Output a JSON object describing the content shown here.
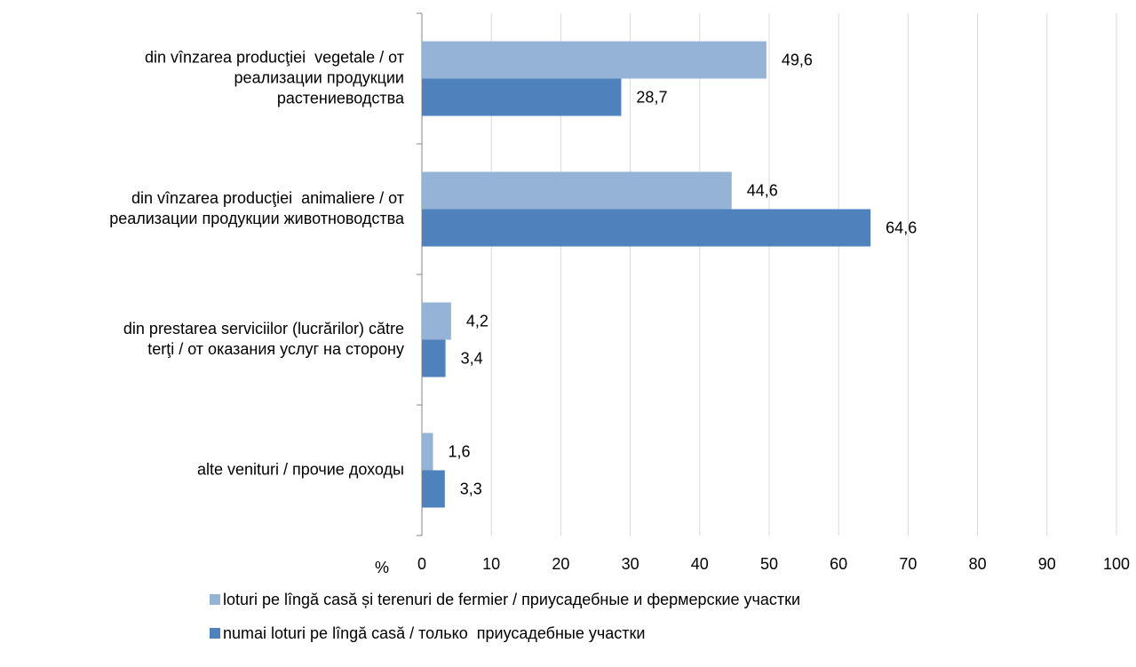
{
  "chart_data": {
    "type": "barh",
    "categories": [
      "din vînzarea producţiei  vegetale / от\nреализации продукции\nрастениеводства",
      "din vînzarea producţiei  animaliere / от\nреализации продукции животноводства",
      "din prestarea serviciilor (lucrărilor) către\nterţi / от оказания услуг на сторону",
      "alte venituri / прочие доходы"
    ],
    "series": [
      {
        "name": "loturi pe lîngă casă și terenuri de fermier / приусадебные и фермерские участки",
        "color": "#95b3d7",
        "values": [
          49.6,
          44.6,
          4.2,
          1.6
        ],
        "value_labels": [
          "49,6",
          "44,6",
          "4,2",
          "1,6"
        ]
      },
      {
        "name": "numai loturi pe lîngă casă / только  приусадебные участки",
        "color": "#4f81bd",
        "values": [
          28.7,
          64.6,
          3.4,
          3.3
        ],
        "value_labels": [
          "28,7",
          "64,6",
          "3,4",
          "3,3"
        ]
      }
    ],
    "xlabel": "%",
    "xlim": [
      0,
      100
    ],
    "xticks": [
      0,
      10,
      20,
      30,
      40,
      50,
      60,
      70,
      80,
      90,
      100
    ],
    "grid": true
  }
}
